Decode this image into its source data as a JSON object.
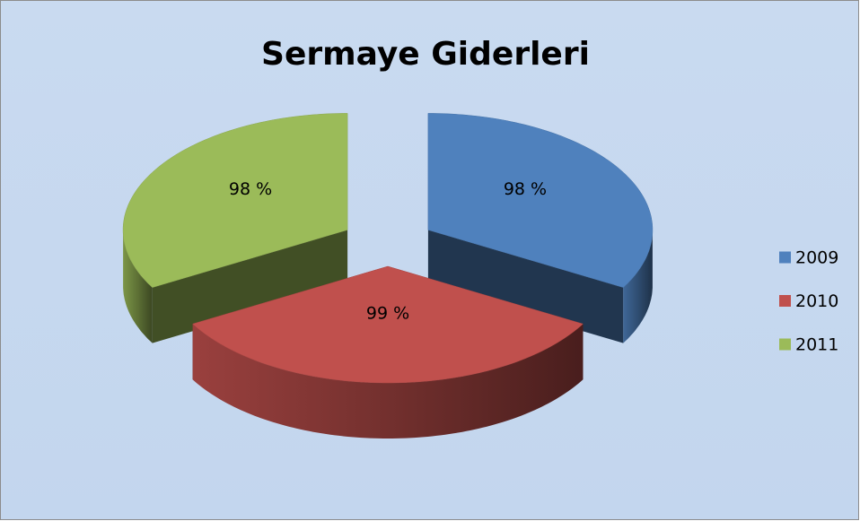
{
  "chart_data": {
    "type": "pie3d",
    "title": "Sermaye Giderleri",
    "categories": [
      "2009",
      "2010",
      "2011"
    ],
    "values": [
      98,
      99,
      98
    ],
    "value_labels": [
      "98 %",
      "99 %",
      "98 %"
    ],
    "colors": [
      "#4f81bd",
      "#c0504d",
      "#9bbb59"
    ],
    "legend": "right"
  }
}
